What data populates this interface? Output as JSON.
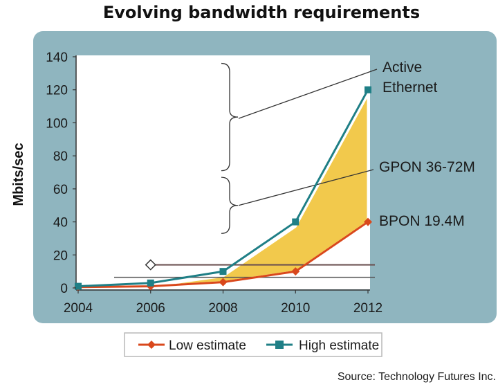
{
  "chart_data": {
    "type": "line",
    "title": "Evolving bandwidth requirements",
    "ylabel": "Mbits/sec",
    "xlabel": "",
    "x": [
      2004,
      2006,
      2008,
      2010,
      2012
    ],
    "x_ticks": [
      "2004",
      "2006",
      "2008",
      "2010",
      "2012"
    ],
    "y_ticks": [
      "0",
      "20",
      "40",
      "60",
      "80",
      "100",
      "120",
      "140"
    ],
    "ylim": [
      0,
      140
    ],
    "xlim": [
      2004,
      2012
    ],
    "grid": false,
    "legend_position": "bottom",
    "series": [
      {
        "name": "Low estimate",
        "values": [
          0.5,
          1,
          3.5,
          10,
          40
        ],
        "color": "#d9481c",
        "marker": "diamond"
      },
      {
        "name": "High estimate",
        "values": [
          1,
          3,
          10,
          40,
          120
        ],
        "color": "#1f7f86",
        "marker": "square"
      }
    ],
    "annotations": [
      {
        "label_lines": [
          "Active",
          "Ethernet"
        ],
        "range": [
          71,
          136
        ]
      },
      {
        "label_lines": [
          "GPON 36-72M"
        ],
        "range": [
          33,
          67
        ]
      },
      {
        "label_lines": [
          "BPON 19.4M"
        ]
      }
    ],
    "reference_line": {
      "y": 14,
      "x_start": 2006
    },
    "source": "Source: Technology Futures Inc.",
    "colors": {
      "panel": "#8fb5bf",
      "plot_bg": "#ffffff",
      "band_fill": "#f2c94c"
    }
  }
}
